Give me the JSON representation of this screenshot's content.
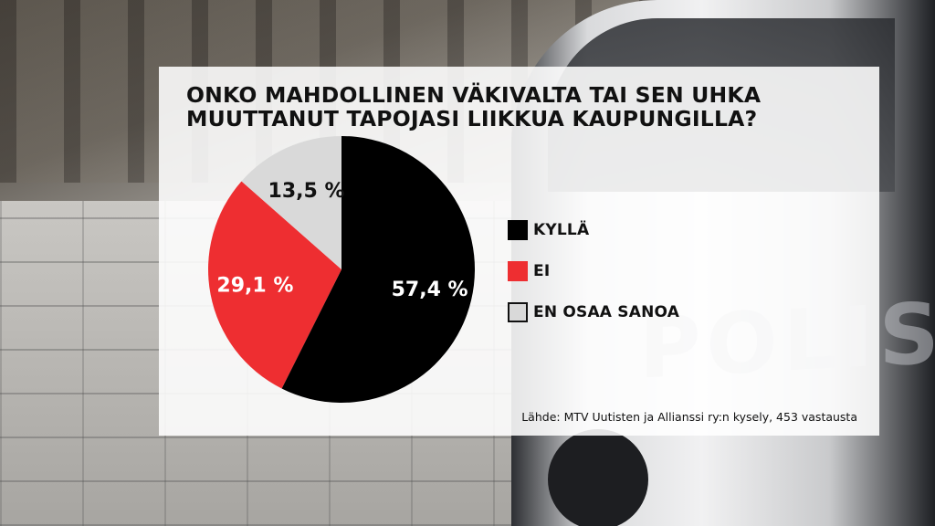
{
  "title_lines": [
    "ONKO MAHDOLLINEN VÄKIVALTA TAI SEN UHKA",
    "MUUTTANUT TAPOJASI LIIKKUA KAUPUNGILLA?"
  ],
  "source": "Lähde: MTV Uutisten ja Allianssi ry:n kysely, 453 vastausta",
  "background": {
    "van_text": "POLIS"
  },
  "chart_data": {
    "type": "pie",
    "title": "ONKO MAHDOLLINEN VÄKIVALTA TAI SEN UHKA MUUTTANUT TAPOJASI LIIKKUA KAUPUNGILLA?",
    "start": "top",
    "direction": "clockwise",
    "legend_position": "right",
    "slices": [
      {
        "name": "KYLLÄ",
        "value": 57.4,
        "label": "57,4 %",
        "color": "#000000",
        "label_color": "#ffffff"
      },
      {
        "name": "EI",
        "value": 29.1,
        "label": "29,1 %",
        "color": "#ee2e31",
        "label_color": "#ffffff"
      },
      {
        "name": "EN OSAA SANOA",
        "value": 13.5,
        "label": "13,5 %",
        "color": "#d9d9d9",
        "label_color": "#111111"
      }
    ]
  }
}
